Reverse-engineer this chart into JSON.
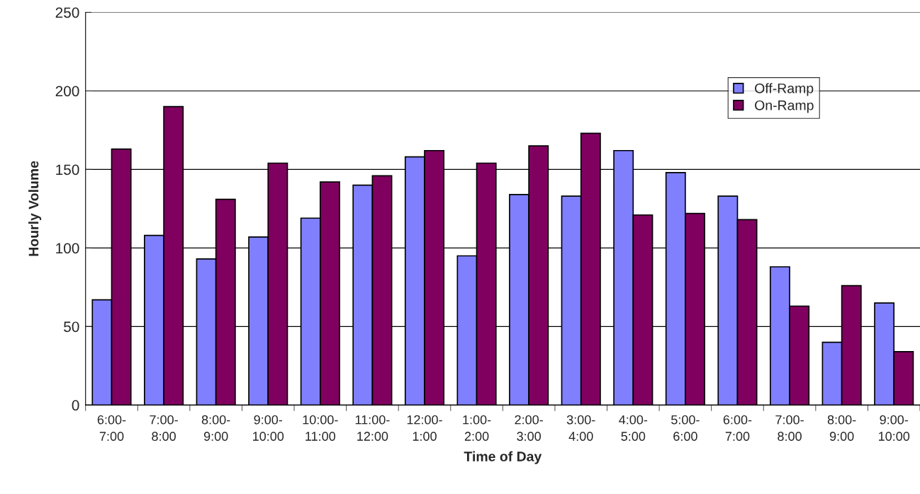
{
  "chart_data": {
    "type": "bar",
    "xlabel": "Time of Day",
    "ylabel": "Hourly Volume",
    "categories": [
      "6:00-\n7:00",
      "7:00-\n8:00",
      "8:00-\n9:00",
      "9:00-\n10:00",
      "10:00-\n11:00",
      "11:00-\n12:00",
      "12:00-\n1:00",
      "1:00-\n2:00",
      "2:00-\n3:00",
      "3:00-\n4:00",
      "4:00-\n5:00",
      "5:00-\n6:00",
      "6:00-\n7:00",
      "7:00-\n8:00",
      "8:00-\n9:00",
      "9:00-\n10:00"
    ],
    "series": [
      {
        "name": "Off-Ramp",
        "color": "#8080ff",
        "values": [
          67,
          108,
          93,
          107,
          119,
          140,
          158,
          95,
          134,
          133,
          162,
          148,
          133,
          88,
          40,
          65
        ]
      },
      {
        "name": "On-Ramp",
        "color": "#800060",
        "values": [
          163,
          190,
          131,
          154,
          142,
          146,
          162,
          154,
          165,
          173,
          121,
          122,
          118,
          63,
          76,
          34
        ]
      }
    ],
    "ylim": [
      0,
      250
    ],
    "yticks": [
      0,
      50,
      100,
      150,
      200,
      250
    ],
    "grid": "y",
    "legend": "top right"
  }
}
